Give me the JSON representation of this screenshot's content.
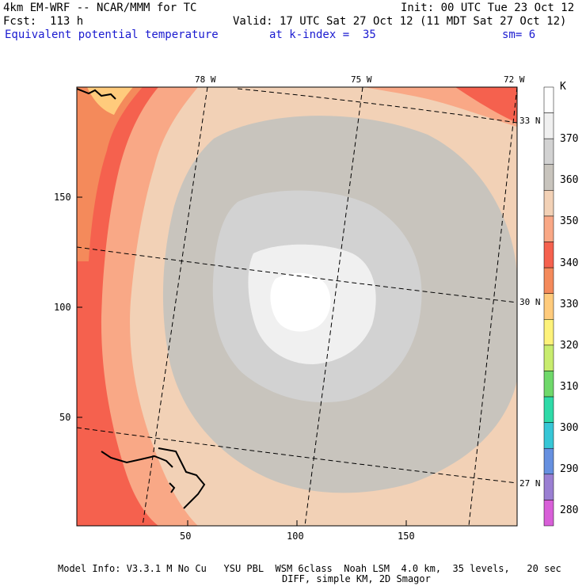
{
  "header": {
    "model_line": "4km EM-WRF -- NCAR/MMM for TC",
    "init_line": "Init: 00 UTC Tue 23 Oct 12",
    "fcst_line": "Fcst:  113 h",
    "valid_line": "Valid: 17 UTC Sat 27 Oct 12 (11 MDT Sat 27 Oct 12)",
    "field_name": "Equivalent potential temperature",
    "level": "at k-index =  35",
    "smoothing": "sm= 6"
  },
  "map": {
    "x_ticks": [
      "50",
      "100",
      "150"
    ],
    "y_ticks": [
      "50",
      "100",
      "150"
    ],
    "lon_labels": [
      "78 W",
      "75 W",
      "72 W"
    ],
    "lat_labels": [
      "33 N",
      "30 N",
      "27 N"
    ]
  },
  "colorbar": {
    "unit": "K",
    "labels": [
      "370",
      "360",
      "350",
      "340",
      "330",
      "320",
      "310",
      "300",
      "290",
      "280"
    ],
    "colors": [
      "#ffffff",
      "#f0f0f0",
      "#d2d2d2",
      "#c8c4bd",
      "#f2d1b6",
      "#f9a886",
      "#f5614e",
      "#f48a5b",
      "#ffcb7c",
      "#fdf27a",
      "#c8ec6e",
      "#6fd86a",
      "#2fdaa8",
      "#37c6d6",
      "#6690e0",
      "#9a7fd2",
      "#d85fd8"
    ]
  },
  "footer": {
    "line1": "Model Info: V3.3.1 M No Cu   YSU PBL  WSM 6class  Noah LSM  4.0 km,  35 levels,   20 sec",
    "line2": "DIFF, simple KM, 2D Smagor"
  }
}
